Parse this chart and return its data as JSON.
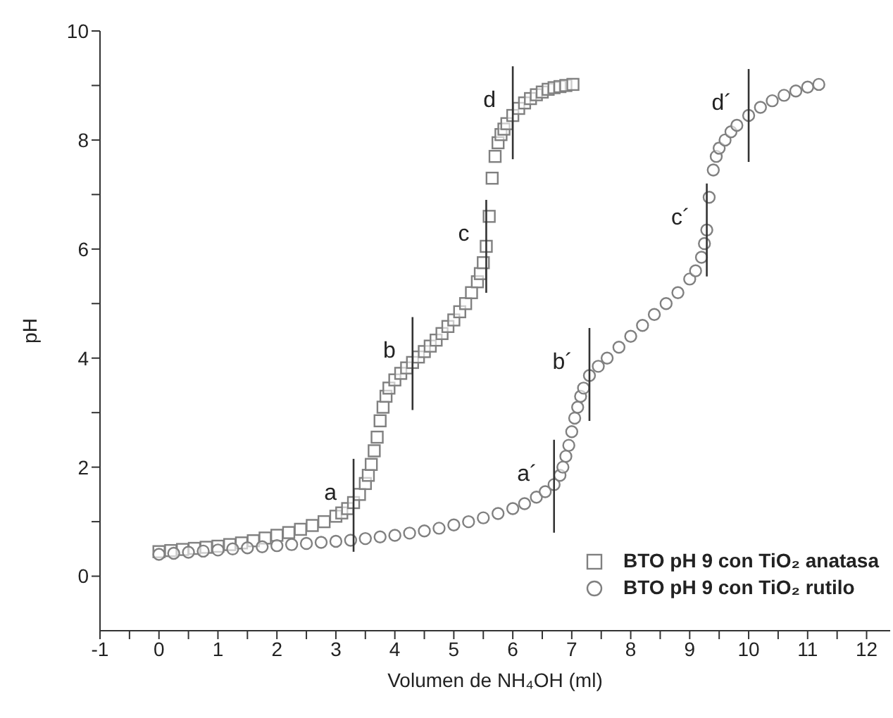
{
  "chart_data": {
    "type": "scatter",
    "xlabel": "Volumen de NH₄OH (ml)",
    "ylabel": "pH",
    "xlim": [
      -1,
      12.4
    ],
    "ylim": [
      -1,
      10
    ],
    "xticks": [
      -1,
      {
        "value": -0.5,
        "label": null
      },
      0,
      {
        "value": 0.5,
        "label": null
      },
      1,
      {
        "value": 1.5,
        "label": null
      },
      2,
      {
        "value": 2.5,
        "label": null
      },
      3,
      {
        "value": 3.5,
        "label": null
      },
      4,
      {
        "value": 4.5,
        "label": null
      },
      5,
      {
        "value": 5.5,
        "label": null
      },
      6,
      {
        "value": 6.5,
        "label": null
      },
      7,
      {
        "value": 7.5,
        "label": null
      },
      8,
      {
        "value": 8.5,
        "label": null
      },
      9,
      {
        "value": 9.5,
        "label": null
      },
      10,
      {
        "value": 10.5,
        "label": null
      },
      11,
      {
        "value": 11.5,
        "label": null
      },
      12
    ],
    "yticks": [
      0,
      {
        "value": 1,
        "label": null
      },
      2,
      {
        "value": 3,
        "label": null
      },
      4,
      {
        "value": 5,
        "label": null
      },
      6,
      {
        "value": 7,
        "label": null
      },
      8,
      {
        "value": 9,
        "label": null
      },
      10
    ],
    "grid": false,
    "legend": "bottom right",
    "series": [
      {
        "name": "BTO pH 9 con TiO₂ anatasa",
        "color": "#808080",
        "marker": "square",
        "x": [
          0,
          0.2,
          0.4,
          0.6,
          0.8,
          1,
          1.2,
          1.4,
          1.6,
          1.8,
          2,
          2.2,
          2.4,
          2.6,
          2.8,
          3,
          3.1,
          3.2,
          3.3,
          3.4,
          3.5,
          3.55,
          3.6,
          3.65,
          3.7,
          3.75,
          3.8,
          3.85,
          3.9,
          4,
          4.1,
          4.2,
          4.3,
          4.4,
          4.5,
          4.6,
          4.7,
          4.8,
          4.9,
          5,
          5.1,
          5.2,
          5.3,
          5.4,
          5.45,
          5.5,
          5.55,
          5.6,
          5.65,
          5.7,
          5.75,
          5.8,
          5.85,
          5.9,
          6,
          6.1,
          6.2,
          6.3,
          6.4,
          6.5,
          6.6,
          6.7,
          6.8,
          6.9,
          7.02
        ],
        "values": [
          0.45,
          0.47,
          0.49,
          0.51,
          0.53,
          0.55,
          0.58,
          0.61,
          0.65,
          0.7,
          0.75,
          0.8,
          0.86,
          0.93,
          1.0,
          1.1,
          1.16,
          1.24,
          1.35,
          1.5,
          1.7,
          1.85,
          2.05,
          2.3,
          2.55,
          2.85,
          3.1,
          3.3,
          3.45,
          3.6,
          3.72,
          3.82,
          3.92,
          4.02,
          4.12,
          4.22,
          4.33,
          4.45,
          4.58,
          4.7,
          4.85,
          5.0,
          5.2,
          5.4,
          5.55,
          5.75,
          6.05,
          6.6,
          7.3,
          7.7,
          7.95,
          8.1,
          8.2,
          8.3,
          8.45,
          8.58,
          8.68,
          8.76,
          8.83,
          8.88,
          8.93,
          8.96,
          8.98,
          9.0,
          9.02
        ]
      },
      {
        "name": "BTO pH 9 con TiO₂ rutilo",
        "color": "#808080",
        "marker": "circle",
        "x": [
          0,
          0.25,
          0.5,
          0.75,
          1,
          1.25,
          1.5,
          1.75,
          2,
          2.25,
          2.5,
          2.75,
          3,
          3.25,
          3.5,
          3.75,
          4,
          4.25,
          4.5,
          4.75,
          5,
          5.25,
          5.5,
          5.75,
          6,
          6.2,
          6.4,
          6.55,
          6.7,
          6.8,
          6.85,
          6.9,
          6.95,
          7,
          7.05,
          7.1,
          7.15,
          7.2,
          7.3,
          7.45,
          7.6,
          7.8,
          8,
          8.2,
          8.4,
          8.6,
          8.8,
          9,
          9.1,
          9.2,
          9.25,
          9.29,
          9.33,
          9.4,
          9.45,
          9.5,
          9.6,
          9.7,
          9.8,
          10,
          10.2,
          10.4,
          10.6,
          10.8,
          11,
          11.19
        ],
        "values": [
          0.4,
          0.42,
          0.44,
          0.46,
          0.48,
          0.5,
          0.52,
          0.54,
          0.56,
          0.58,
          0.6,
          0.62,
          0.64,
          0.66,
          0.69,
          0.72,
          0.75,
          0.79,
          0.83,
          0.88,
          0.94,
          1.0,
          1.07,
          1.15,
          1.24,
          1.33,
          1.45,
          1.55,
          1.68,
          1.85,
          2.0,
          2.2,
          2.4,
          2.65,
          2.9,
          3.1,
          3.3,
          3.45,
          3.68,
          3.85,
          4.0,
          4.2,
          4.4,
          4.6,
          4.8,
          5.0,
          5.2,
          5.45,
          5.6,
          5.85,
          6.1,
          6.35,
          6.95,
          7.45,
          7.7,
          7.85,
          8.0,
          8.15,
          8.27,
          8.45,
          8.6,
          8.72,
          8.82,
          8.9,
          8.97,
          9.02
        ]
      }
    ],
    "annotations": [
      {
        "text": "a",
        "x": 3.3,
        "y": 1.3
      },
      {
        "text": "b",
        "x": 4.3,
        "y": 3.9
      },
      {
        "text": "c",
        "x": 5.55,
        "y": 6.05
      },
      {
        "text": "d",
        "x": 6.0,
        "y": 8.5
      },
      {
        "text": "a´",
        "x": 6.7,
        "y": 1.65
      },
      {
        "text": "b´",
        "x": 7.3,
        "y": 3.7
      },
      {
        "text": "c´",
        "x": 9.29,
        "y": 6.35
      },
      {
        "text": "d´",
        "x": 10.0,
        "y": 8.45
      }
    ]
  }
}
